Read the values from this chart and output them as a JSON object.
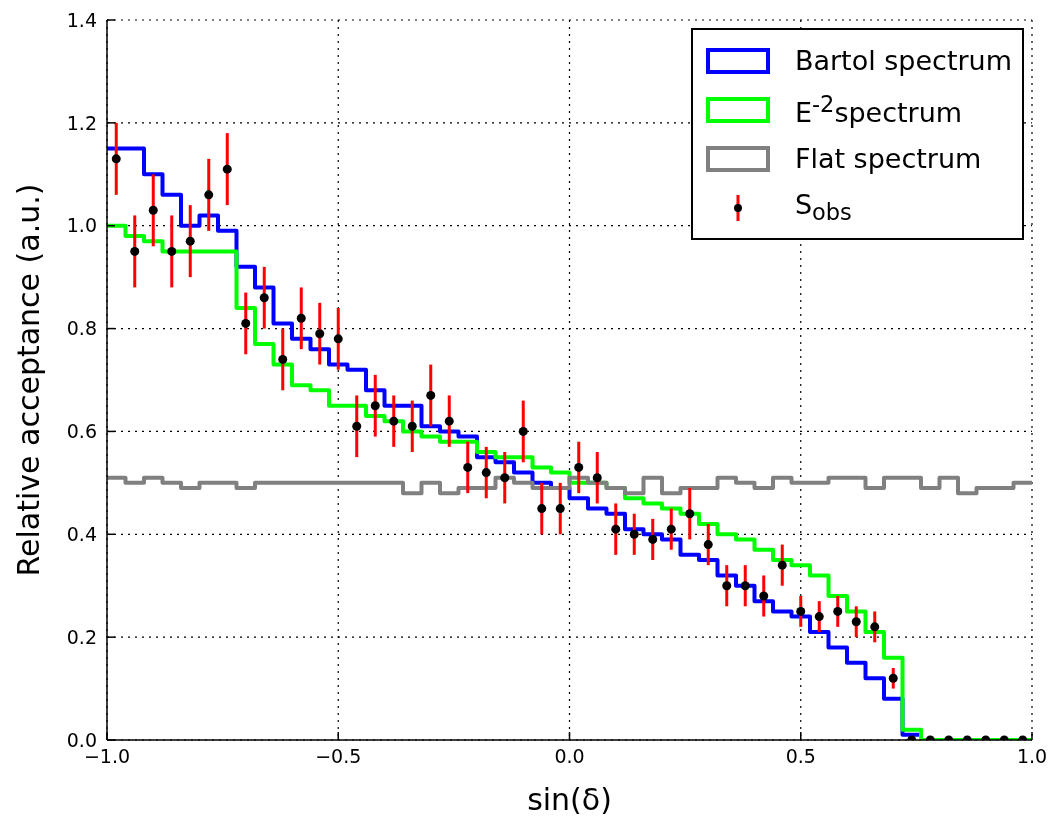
{
  "chart_data": {
    "type": "histogram",
    "xlabel": "sin(δ)",
    "ylabel": "Relative acceptance (a.u.)",
    "bins": [
      -1,
      -0.96,
      -0.92,
      -0.88,
      -0.84,
      -0.8,
      -0.76,
      -0.72,
      -0.68,
      -0.64,
      -0.6,
      -0.56,
      -0.52,
      -0.48,
      -0.44,
      -0.4,
      -0.36,
      -0.32,
      -0.28,
      -0.24,
      -0.2,
      -0.16,
      -0.12,
      -0.08,
      -0.04,
      0,
      0.04,
      0.08,
      0.12,
      0.16,
      0.2,
      0.24,
      0.28,
      0.32,
      0.36,
      0.4,
      0.44,
      0.48,
      0.52,
      0.56,
      0.6,
      0.64,
      0.68,
      0.72,
      0.76,
      0.8,
      0.84,
      0.88,
      0.92,
      0.96,
      1
    ],
    "series": [
      {
        "name": "Bartol spectrum",
        "color": "#0000ff",
        "values": [
          1.15,
          1.15,
          1.1,
          1.06,
          1.0,
          1.02,
          0.99,
          0.92,
          0.88,
          0.81,
          0.78,
          0.76,
          0.73,
          0.72,
          0.68,
          0.65,
          0.65,
          0.61,
          0.6,
          0.59,
          0.55,
          0.54,
          0.52,
          0.5,
          0.49,
          0.47,
          0.45,
          0.44,
          0.41,
          0.4,
          0.39,
          0.36,
          0.35,
          0.32,
          0.3,
          0.27,
          0.25,
          0.24,
          0.21,
          0.18,
          0.15,
          0.12,
          0.08,
          0.01,
          0,
          0,
          0,
          0,
          0,
          0
        ]
      },
      {
        "name": "E$^{-2}$spectrum",
        "color": "#00ff00",
        "values": [
          1.0,
          0.98,
          0.97,
          0.95,
          0.95,
          0.95,
          0.95,
          0.84,
          0.77,
          0.73,
          0.69,
          0.68,
          0.65,
          0.65,
          0.63,
          0.62,
          0.6,
          0.59,
          0.58,
          0.58,
          0.56,
          0.55,
          0.55,
          0.53,
          0.52,
          0.5,
          0.5,
          0.49,
          0.47,
          0.46,
          0.45,
          0.44,
          0.42,
          0.4,
          0.39,
          0.37,
          0.35,
          0.34,
          0.32,
          0.28,
          0.25,
          0.21,
          0.16,
          0.02,
          0,
          0,
          0,
          0,
          0,
          0
        ]
      },
      {
        "name": "Flat spectrum",
        "color": "#808080",
        "values": [
          0.51,
          0.5,
          0.51,
          0.5,
          0.49,
          0.5,
          0.5,
          0.49,
          0.5,
          0.5,
          0.5,
          0.5,
          0.5,
          0.5,
          0.5,
          0.5,
          0.48,
          0.5,
          0.48,
          0.49,
          0.49,
          0.51,
          0.5,
          0.49,
          0.49,
          0.51,
          0.5,
          0.49,
          0.48,
          0.51,
          0.48,
          0.49,
          0.49,
          0.51,
          0.5,
          0.49,
          0.51,
          0.5,
          0.5,
          0.51,
          0.51,
          0.49,
          0.51,
          0.51,
          0.49,
          0.51,
          0.48,
          0.49,
          0.49,
          0.5
        ]
      },
      {
        "name": "S$_{obs}$",
        "type": "scatter",
        "color": "#000000",
        "marker": "circle",
        "x": [
          -0.98,
          -0.94,
          -0.9,
          -0.86,
          -0.82,
          -0.78,
          -0.74,
          -0.7,
          -0.66,
          -0.62,
          -0.58,
          -0.54,
          -0.5,
          -0.46,
          -0.42,
          -0.38,
          -0.34,
          -0.3,
          -0.26,
          -0.22,
          -0.18,
          -0.14,
          -0.1,
          -0.06,
          -0.02,
          0.02,
          0.06,
          0.1,
          0.14,
          0.18,
          0.22,
          0.26,
          0.3,
          0.34,
          0.38,
          0.42,
          0.46,
          0.5,
          0.54,
          0.58,
          0.62,
          0.66,
          0.7,
          0.74,
          0.78,
          0.82,
          0.86,
          0.9,
          0.94,
          0.98
        ],
        "values": [
          1.13,
          0.95,
          1.03,
          0.95,
          0.97,
          1.06,
          1.11,
          0.81,
          0.86,
          0.74,
          0.82,
          0.79,
          0.78,
          0.61,
          0.65,
          0.62,
          0.61,
          0.67,
          0.62,
          0.53,
          0.52,
          0.51,
          0.6,
          0.45,
          0.45,
          0.53,
          0.51,
          0.41,
          0.4,
          0.39,
          0.41,
          0.44,
          0.38,
          0.3,
          0.3,
          0.28,
          0.34,
          0.25,
          0.24,
          0.25,
          0.23,
          0.22,
          0.12,
          0,
          0,
          0,
          0,
          0,
          0,
          0
        ],
        "errors": [
          0.07,
          0.07,
          0.07,
          0.07,
          0.07,
          0.07,
          0.07,
          0.06,
          0.06,
          0.06,
          0.06,
          0.06,
          0.06,
          0.06,
          0.06,
          0.05,
          0.05,
          0.06,
          0.05,
          0.05,
          0.05,
          0.05,
          0.06,
          0.05,
          0.05,
          0.05,
          0.05,
          0.05,
          0.04,
          0.04,
          0.04,
          0.05,
          0.04,
          0.04,
          0.04,
          0.04,
          0.04,
          0.03,
          0.03,
          0.03,
          0.03,
          0.03,
          0.02,
          null,
          null,
          null,
          null,
          null,
          null,
          null
        ]
      }
    ],
    "xlim": [
      -1,
      1
    ],
    "xticks": [
      {
        "value": -1,
        "label": "−1.0"
      },
      {
        "value": -0.5,
        "label": "−0.5"
      },
      {
        "value": 0,
        "label": "0.0"
      },
      {
        "value": 0.5,
        "label": "0.5"
      },
      {
        "value": 1,
        "label": "1.0"
      }
    ],
    "ylim": [
      0,
      1.4
    ],
    "yticks": [
      {
        "value": 0,
        "label": "0.0"
      },
      {
        "value": 0.2,
        "label": "0.2"
      },
      {
        "value": 0.4,
        "label": "0.4"
      },
      {
        "value": 0.6,
        "label": "0.6"
      },
      {
        "value": 0.8,
        "label": "0.8"
      },
      {
        "value": 1,
        "label": "1.0"
      },
      {
        "value": 1.2,
        "label": "1.2"
      },
      {
        "value": 1.4,
        "label": "1.4"
      }
    ],
    "grid": true,
    "legend": "top right"
  }
}
